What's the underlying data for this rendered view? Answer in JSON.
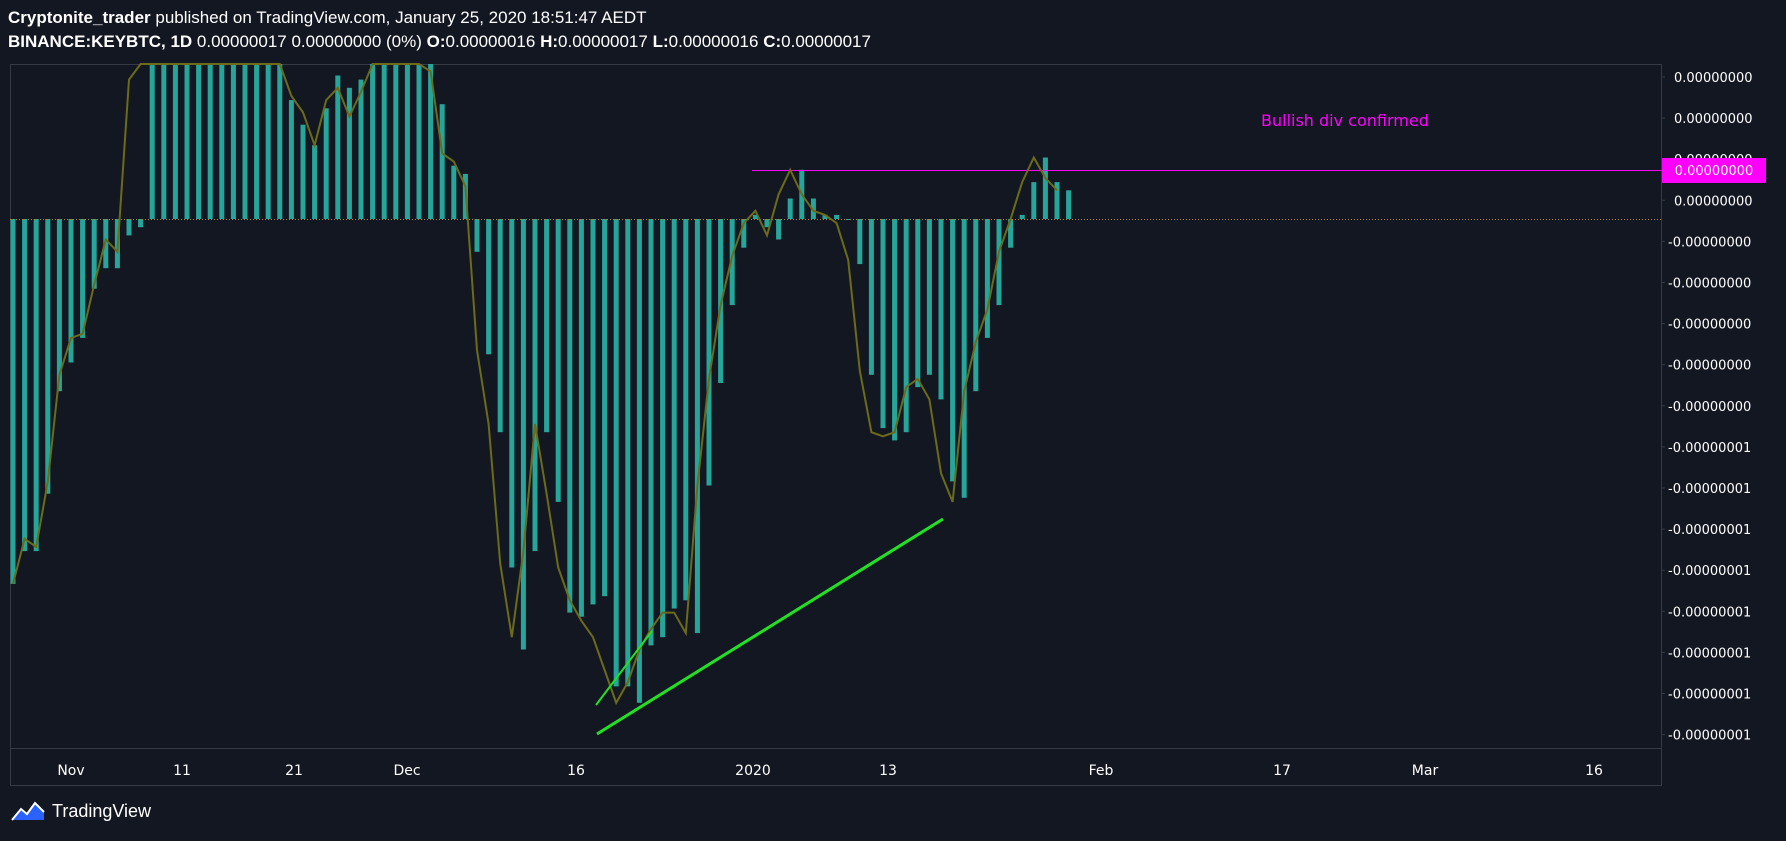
{
  "header": {
    "author": "Cryptonite_trader",
    "published": "published on TradingView.com, January 25, 2020 18:51:47 AEDT",
    "symbol": "BINANCE:KEYBTC, 1D",
    "price": "0.00000017 0.00000000 (0%)",
    "o_label": "O:",
    "o_value": "0.00000016",
    "h_label": "H:",
    "h_value": "0.00000017",
    "l_label": "L:",
    "l_value": "0.00000016",
    "c_label": "C:",
    "c_value": "0.00000017"
  },
  "footer": {
    "brand": "TradingView"
  },
  "colors": {
    "background": "#131722",
    "histogram": "#26a69a",
    "histogram_line": "#6b6b1a",
    "trendline": "#22e022",
    "annotation": "#ff00ff",
    "price_tag": "#ff00ff",
    "zero_line": "#b8862a",
    "axis_text": "#ffffff",
    "border": "#363a45"
  },
  "chart_data": {
    "type": "bar",
    "title": "BINANCE:KEYBTC, 1D",
    "xlabel": "",
    "ylabel": "",
    "x_ticks": [
      "Nov",
      "11",
      "21",
      "Dec",
      "16",
      "2020",
      "13",
      "Feb",
      "17",
      "Mar",
      "16"
    ],
    "y_ticks": [
      "0.00000000",
      "0.00000000",
      "0.00000000",
      "0.00000000",
      "-0.00000000",
      "-0.00000000",
      "-0.00000000",
      "-0.00000000",
      "-0.00000000",
      "-0.00000001",
      "-0.00000001",
      "-0.00000001",
      "-0.00000001",
      "-0.00000001",
      "-0.00000001",
      "-0.00000001",
      "-0.00000001"
    ],
    "price_tag": "0.00000000",
    "annotation": "Bullish div confirmed",
    "series": [
      {
        "name": "Histogram",
        "values": [
          -8.9,
          -8.1,
          -8.1,
          -6.7,
          -4.2,
          -3.5,
          -2.9,
          -1.7,
          -1.2,
          -1.2,
          -0.4,
          -0.2,
          12,
          12,
          12,
          12,
          12,
          12,
          12,
          12,
          12,
          12,
          12,
          12,
          2.9,
          2.3,
          1.8,
          2.7,
          3.5,
          3.2,
          3.4,
          12,
          12,
          12,
          12,
          12,
          12,
          2.8,
          1.3,
          1.1,
          -0.8,
          -3.3,
          -5.2,
          -8.5,
          -10.5,
          -8.1,
          -5.2,
          -6.9,
          -9.6,
          -9.7,
          -9.4,
          -9.2,
          -11.4,
          -11.4,
          -11.8,
          -10.4,
          -10.2,
          -9.5,
          -9.3,
          -10.1,
          -6.5,
          -4.0,
          -2.1,
          -0.7,
          0.1,
          -0.2,
          -0.5,
          0.5,
          1.2,
          0.5,
          0.1,
          0.1,
          0.0,
          -1.1,
          -3.8,
          -5.1,
          -5.4,
          -5.2,
          -4.1,
          -3.8,
          -4.4,
          -6.4,
          -6.8,
          -4.2,
          -2.9,
          -2.1,
          -0.7,
          0.1,
          0.9,
          1.5,
          0.9,
          0.7
        ]
      },
      {
        "name": "Signal",
        "values": [
          -8.9,
          -7.8,
          -8.0,
          -6.4,
          -3.8,
          -2.9,
          -2.8,
          -1.6,
          -0.5,
          -0.8,
          3.4,
          12,
          12,
          12,
          12,
          12,
          12,
          12,
          12,
          12,
          12,
          12,
          12,
          12,
          3.0,
          2.6,
          1.8,
          2.9,
          3.2,
          2.5,
          3.1,
          12,
          12,
          12,
          12,
          12,
          3.6,
          1.6,
          1.4,
          0.8,
          -3.2,
          -5.0,
          -8.4,
          -10.2,
          -8.1,
          -5.0,
          -6.7,
          -8.5,
          -9.3,
          -9.8,
          -10.2,
          -11.0,
          -11.8,
          -11.3,
          -10.5,
          -10.0,
          -9.6,
          -9.6,
          -10.1,
          -6.5,
          -3.9,
          -2.1,
          -0.9,
          -0.1,
          0.2,
          -0.4,
          0.6,
          1.2,
          0.6,
          0.2,
          0.1,
          -0.1,
          -1.0,
          -3.7,
          -5.2,
          -5.3,
          -5.2,
          -4.1,
          -3.9,
          -4.4,
          -6.2,
          -6.9,
          -4.2,
          -3.0,
          -2.2,
          -0.8,
          0.0,
          0.9,
          1.5,
          1.0,
          0.7
        ]
      }
    ]
  }
}
